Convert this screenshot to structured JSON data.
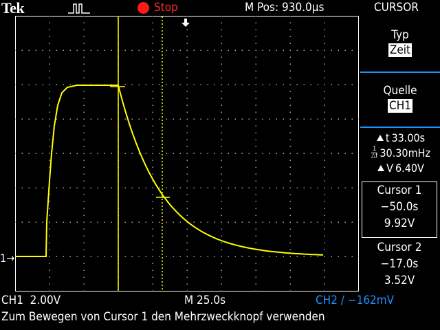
{
  "header": {
    "brand": "Tek",
    "acquisition_state": "Stop",
    "horizontal_position": "M Pos: 930.0µs",
    "menu_title": "CURSOR"
  },
  "menu": {
    "type_label": "Typ",
    "type_value": "Zeit",
    "source_label": "Quelle",
    "source_value": "CH1",
    "delta_t": "33.00s",
    "inverse_delta_t": "30.30mHz",
    "delta_v": "6.40V",
    "cursor1": {
      "label": "Cursor 1",
      "time": "−50.0s",
      "voltage": "9.92V"
    },
    "cursor2": {
      "label": "Cursor 2",
      "time": "−17.0s",
      "voltage": "3.52V"
    }
  },
  "footer": {
    "ch1_scale": "CH1  2.00V",
    "timebase": "M 25.0s",
    "ch2_scale": "CH2 ∕ −162mV",
    "status_message": "Zum Bewegen von Cursor 1 den Mehrzweckknopf verwenden"
  },
  "ch1_marker": "1",
  "colors": {
    "trace": "#ffff00",
    "ch2": "#1e90ff",
    "stop": "#ff1a1a",
    "menu_separator": "#1e90ff"
  },
  "icons": {
    "trigger": "pulse-trigger-icon",
    "stop": "stop-dot-icon",
    "trigger_position": "trigger-position-arrow-icon"
  }
}
